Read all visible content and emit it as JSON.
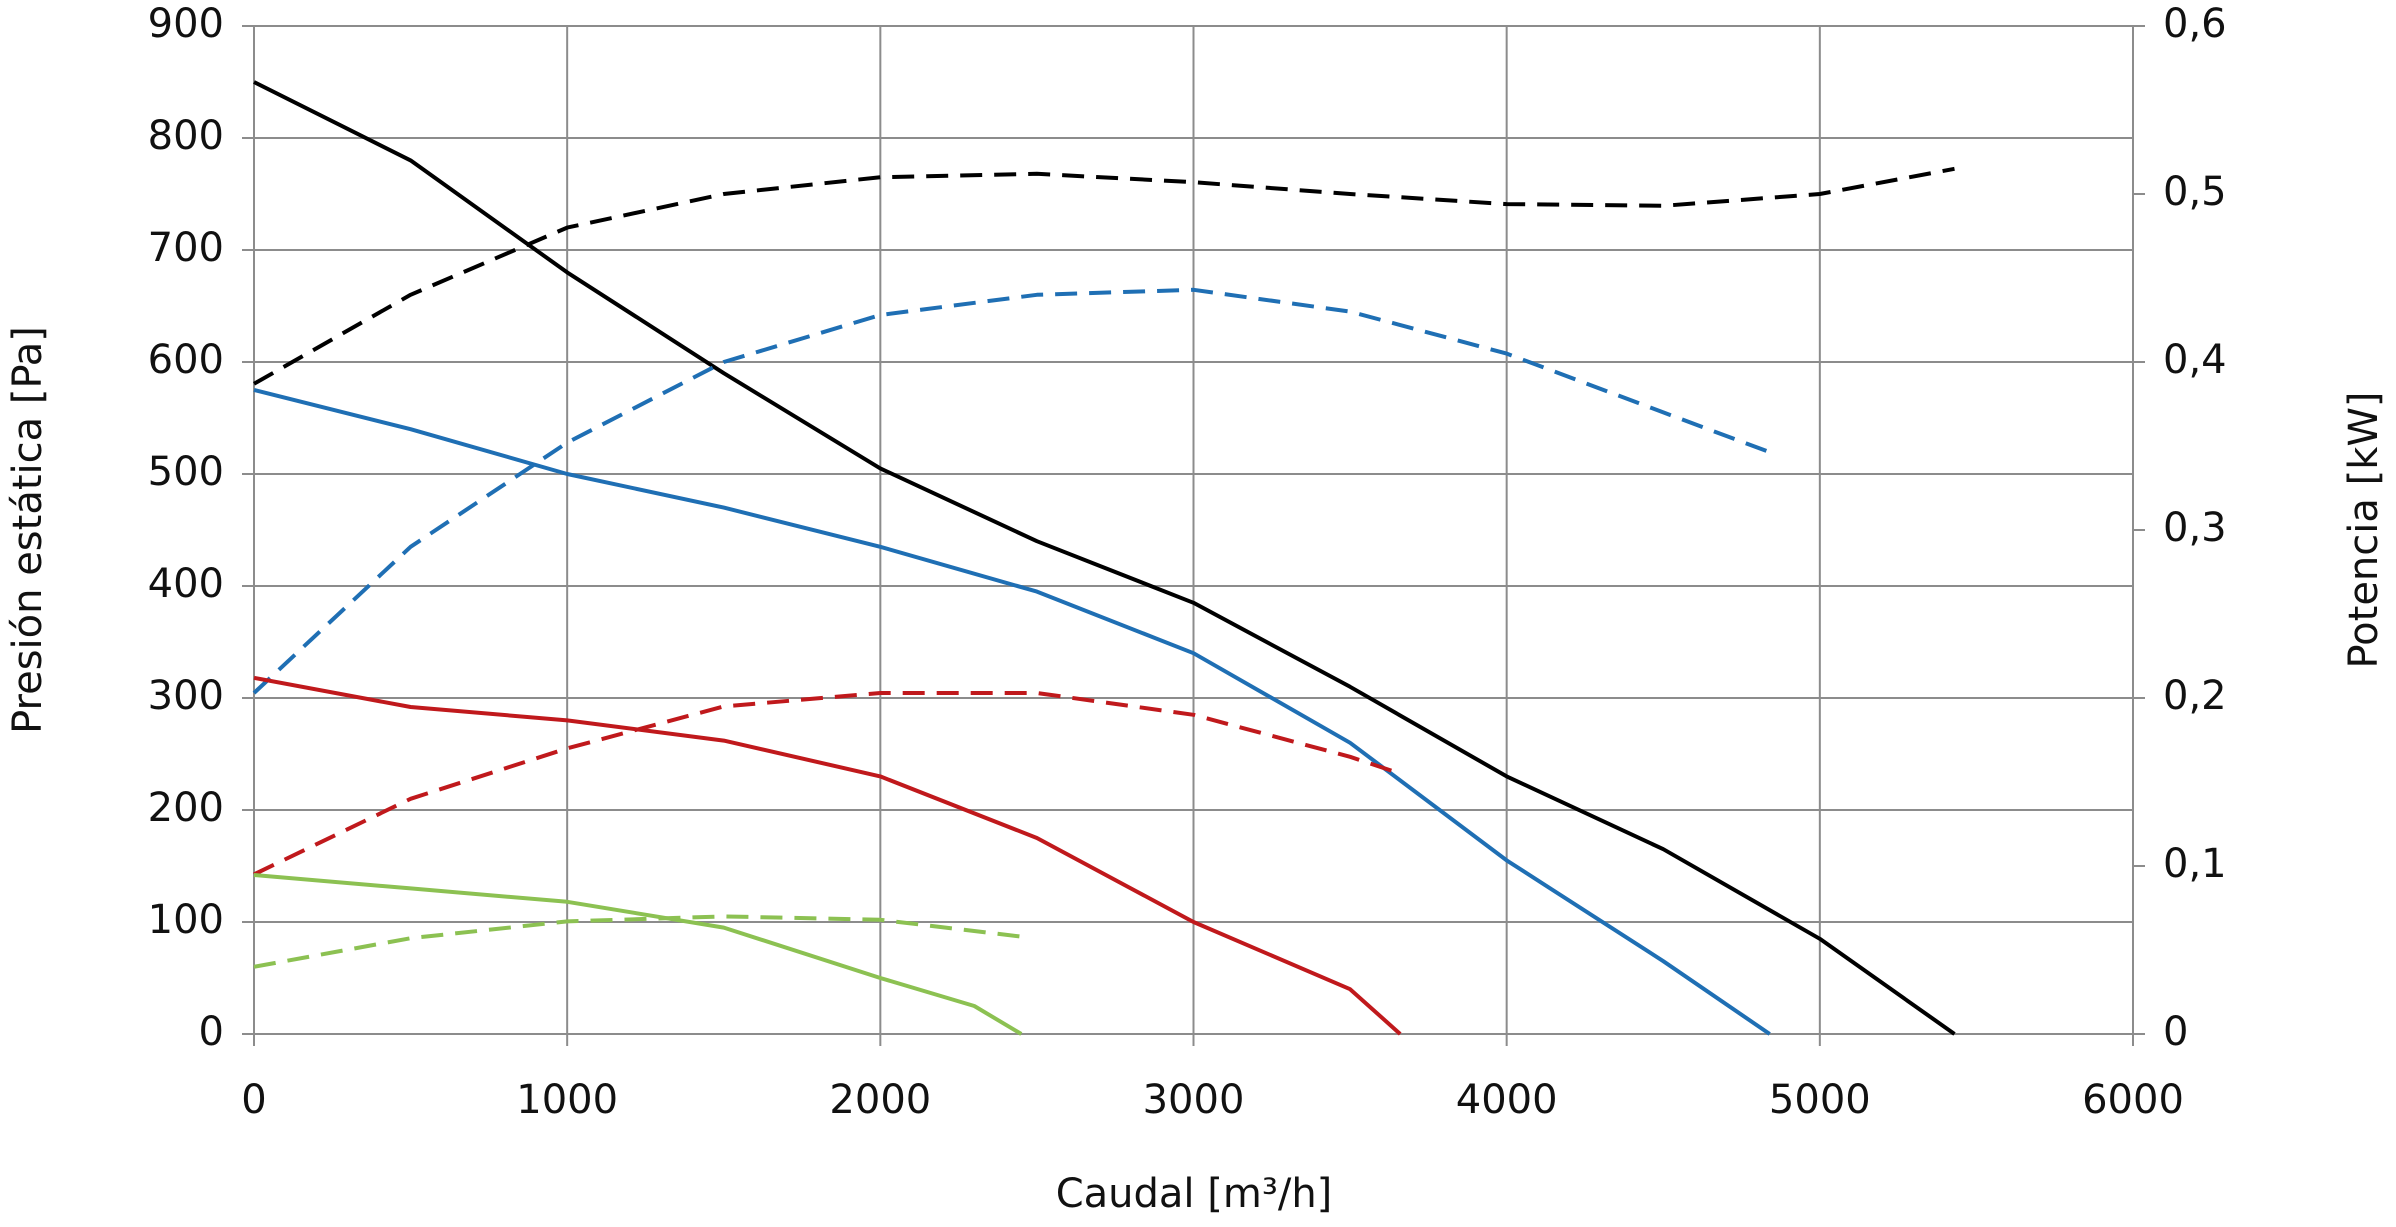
{
  "chart_data": {
    "type": "line",
    "x_label": "Caudal [m³/h]",
    "y_label": "Presión estática [Pa]",
    "y2_label": "Potencia [kW]",
    "xlim": [
      0,
      6000
    ],
    "xticks": [
      0,
      1000,
      2000,
      3000,
      4000,
      5000,
      6000
    ],
    "ylim": [
      0,
      900
    ],
    "yticks": [
      0,
      100,
      200,
      300,
      400,
      500,
      600,
      700,
      800,
      900
    ],
    "y2lim": [
      0,
      0.6
    ],
    "y2ticks": [
      {
        "value": 0,
        "label": "0"
      },
      {
        "value": 0.1,
        "label": "0,1"
      },
      {
        "value": 0.2,
        "label": "0,2"
      },
      {
        "value": 0.3,
        "label": "0,3"
      },
      {
        "value": 0.4,
        "label": "0,4"
      },
      {
        "value": 0.5,
        "label": "0,5"
      },
      {
        "value": 0.6,
        "label": "0,6"
      }
    ],
    "grid": true,
    "series": [
      {
        "color": "#000000",
        "style": "solid",
        "x": [
          0,
          500,
          1000,
          1500,
          2000,
          2500,
          3000,
          3500,
          4000,
          4500,
          5000,
          5430
        ],
        "values": [
          850,
          780,
          680,
          590,
          505,
          440,
          385,
          310,
          230,
          165,
          85,
          0
        ]
      },
      {
        "color": "#000000",
        "style": "dashed",
        "axis": "y2",
        "x": [
          0,
          500,
          1000,
          1500,
          2000,
          2500,
          3000,
          3500,
          4000,
          4500,
          5000,
          5430
        ],
        "values": [
          0.387,
          0.44,
          0.48,
          0.5,
          0.51,
          0.512,
          0.507,
          0.5,
          0.494,
          0.493,
          0.5,
          0.515
        ]
      },
      {
        "color": "#1f6fb4",
        "style": "solid",
        "x": [
          0,
          500,
          1000,
          1500,
          2000,
          2500,
          3000,
          3500,
          4000,
          4500,
          4840
        ],
        "values": [
          575,
          540,
          500,
          470,
          435,
          395,
          340,
          260,
          155,
          65,
          0
        ]
      },
      {
        "color": "#1f6fb4",
        "style": "dashed",
        "axis": "y2",
        "x": [
          0,
          500,
          1000,
          1500,
          2000,
          2500,
          3000,
          3500,
          4000,
          4500,
          4830
        ],
        "values": [
          0.203,
          0.29,
          0.352,
          0.4,
          0.428,
          0.44,
          0.443,
          0.43,
          0.405,
          0.37,
          0.347
        ]
      },
      {
        "color": "#c0191c",
        "style": "solid",
        "x": [
          0,
          500,
          1000,
          1500,
          2000,
          2500,
          3000,
          3500,
          3660
        ],
        "values": [
          318,
          292,
          280,
          262,
          230,
          175,
          100,
          40,
          0
        ]
      },
      {
        "color": "#c0191c",
        "style": "dashed",
        "axis": "y2",
        "x": [
          0,
          500,
          1000,
          1500,
          2000,
          2500,
          3000,
          3500,
          3660
        ],
        "values": [
          0.095,
          0.14,
          0.17,
          0.195,
          0.203,
          0.203,
          0.19,
          0.165,
          0.155
        ]
      },
      {
        "color": "#8cc152",
        "style": "solid",
        "x": [
          0,
          500,
          1000,
          1500,
          2000,
          2300,
          2450
        ],
        "values": [
          142,
          130,
          118,
          95,
          50,
          25,
          0
        ]
      },
      {
        "color": "#8cc152",
        "style": "dashed",
        "axis": "y2",
        "x": [
          0,
          500,
          1000,
          1500,
          2000,
          2450
        ],
        "values": [
          0.04,
          0.057,
          0.067,
          0.07,
          0.068,
          0.058
        ]
      }
    ]
  }
}
